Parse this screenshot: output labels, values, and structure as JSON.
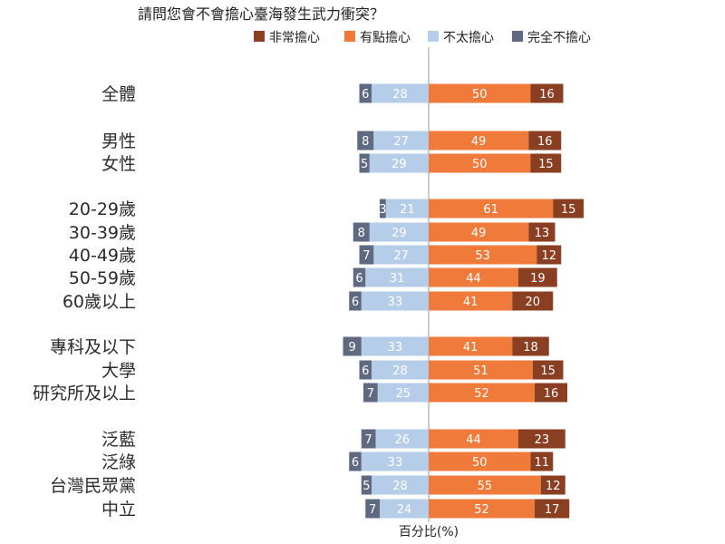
{
  "chart_data": {
    "type": "bar",
    "orientation": "horizontal",
    "stacking": "diverging",
    "title": "請問您會不會擔心臺海發生武力衝突？",
    "xlabel": "百分比(%)",
    "ylabel": "",
    "legend_position": "top-right",
    "categories": [
      "全體",
      "男性",
      "女性",
      "20-29歲",
      "30-39歲",
      "40-49歲",
      "50-59歲",
      "60歲以上",
      "專科及以下",
      "大學",
      "研究所及以上",
      "泛藍",
      "泛綠",
      "台灣民眾黨",
      "中立"
    ],
    "series": [
      {
        "name": "非常擔心",
        "color": "#8b3f22",
        "side": "right",
        "values": [
          16,
          16,
          15,
          15,
          13,
          12,
          19,
          20,
          18,
          15,
          16,
          23,
          11,
          12,
          17
        ]
      },
      {
        "name": "有點擔心",
        "color": "#f07a3a",
        "side": "right",
        "values": [
          50,
          49,
          50,
          61,
          49,
          53,
          44,
          41,
          41,
          51,
          52,
          44,
          50,
          55,
          52
        ]
      },
      {
        "name": "不太擔心",
        "color": "#b6cde9",
        "side": "left",
        "values": [
          28,
          27,
          29,
          21,
          29,
          27,
          31,
          33,
          33,
          28,
          25,
          26,
          33,
          28,
          24
        ]
      },
      {
        "name": "完全不擔心",
        "color": "#5f6a80",
        "side": "left",
        "values": [
          6,
          8,
          5,
          3,
          8,
          7,
          6,
          6,
          9,
          6,
          7,
          7,
          6,
          5,
          7
        ]
      }
    ]
  }
}
